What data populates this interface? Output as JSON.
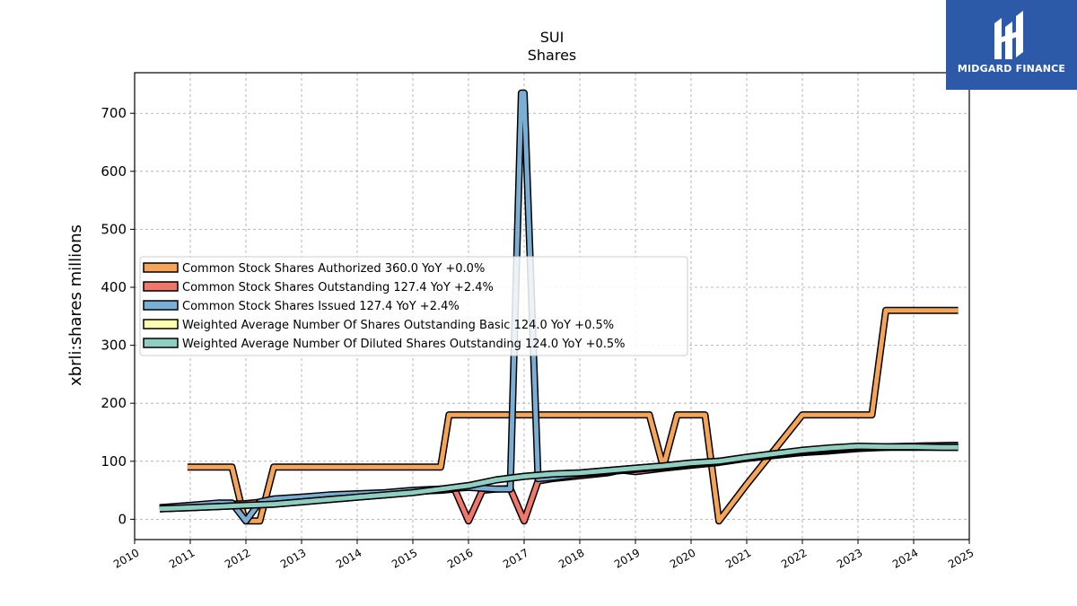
{
  "brand": {
    "name": "MIDGARD FINANCE",
    "bg_color": "#2d5aa8"
  },
  "chart_data": {
    "type": "line",
    "title": "SUI",
    "subtitle": "Shares",
    "ylabel": "xbrli:shares millions",
    "xlabel": "",
    "xlim": [
      2010.0,
      2025.0
    ],
    "ylim": [
      -35,
      770
    ],
    "x_ticks": [
      "2010",
      "2011",
      "2012",
      "2013",
      "2014",
      "2015",
      "2016",
      "2017",
      "2018",
      "2019",
      "2020",
      "2021",
      "2022",
      "2023",
      "2024",
      "2025"
    ],
    "y_ticks": [
      0,
      100,
      200,
      300,
      400,
      500,
      600,
      700
    ],
    "grid": true,
    "legend_position": "center-left",
    "series": [
      {
        "name": "Common Stock Shares Authorized",
        "legend": "Common Stock Shares Authorized  360.0 YoY +0.0%",
        "color": "#f5a55a",
        "x": [
          2010.95,
          2011.2,
          2011.45,
          2011.75,
          2011.95,
          2012.0,
          2012.25,
          2012.5,
          2013.0,
          2014.0,
          2015.0,
          2015.5,
          2015.65,
          2016.0,
          2017.0,
          2018.0,
          2019.0,
          2019.25,
          2019.5,
          2019.75,
          2020.0,
          2020.25,
          2020.5,
          2021.0,
          2021.5,
          2022.0,
          2022.5,
          2023.0,
          2023.25,
          2023.5,
          2024.0,
          2024.5,
          2024.8
        ],
        "y": [
          90,
          90,
          90,
          90,
          10,
          -3,
          -3,
          90,
          90,
          90,
          90,
          90,
          180,
          180,
          180,
          180,
          180,
          180,
          90,
          180,
          180,
          180,
          -3,
          60,
          120,
          180,
          180,
          180,
          180,
          360,
          360,
          360,
          360
        ]
      },
      {
        "name": "Common Stock Shares Outstanding",
        "legend": "Common Stock Shares Outstanding  127.4 YoY +2.4%",
        "color": "#f0776a",
        "x": [
          2010.45,
          2011.0,
          2011.5,
          2012.0,
          2012.5,
          2013.0,
          2013.5,
          2014.0,
          2014.5,
          2015.0,
          2015.5,
          2015.75,
          2016.0,
          2016.25,
          2016.5,
          2016.75,
          2017.0,
          2017.25,
          2017.5,
          2018.0,
          2018.5,
          2018.75,
          2019.0,
          2019.5,
          2020.0,
          2020.5,
          2021.0,
          2021.5,
          2022.0,
          2022.5,
          2023.0,
          2023.5,
          2024.0,
          2024.5,
          2024.8
        ],
        "y": [
          20,
          22,
          25,
          27,
          32,
          36,
          40,
          42,
          45,
          48,
          50,
          52,
          -3,
          50,
          52,
          53,
          -3,
          66,
          70,
          75,
          80,
          85,
          82,
          88,
          93,
          98,
          105,
          110,
          115,
          118,
          122,
          124,
          126,
          127,
          127.4
        ]
      },
      {
        "name": "Common Stock Shares Issued",
        "legend": "Common Stock Shares Issued  127.4 YoY +2.4%",
        "color": "#7aaed4",
        "x": [
          2010.45,
          2011.0,
          2011.5,
          2011.75,
          2012.0,
          2012.25,
          2012.5,
          2013.0,
          2013.5,
          2014.0,
          2014.5,
          2015.0,
          2015.5,
          2016.0,
          2016.5,
          2016.75,
          2016.95,
          2017.0,
          2017.25,
          2017.5,
          2018.0,
          2018.5,
          2019.0,
          2019.5,
          2020.0,
          2020.5,
          2021.0,
          2021.5,
          2022.0,
          2022.5,
          2023.0,
          2023.5,
          2024.0,
          2024.5,
          2024.8
        ],
        "y": [
          20,
          24,
          28,
          28,
          -3,
          30,
          35,
          38,
          42,
          44,
          46,
          50,
          52,
          55,
          52,
          52,
          735,
          735,
          70,
          72,
          78,
          82,
          86,
          90,
          95,
          100,
          106,
          112,
          117,
          120,
          123,
          125,
          126,
          127,
          127.4
        ]
      },
      {
        "name": "Weighted Average Number Of Shares Outstanding Basic",
        "legend": "Weighted Average Number Of Shares Outstanding Basic  124.0 YoY +0.5%",
        "color": "#ffffb0",
        "x": [
          2010.45,
          2011.0,
          2011.5,
          2012.0,
          2012.5,
          2013.0,
          2013.5,
          2014.0,
          2014.5,
          2015.0,
          2015.5,
          2016.0,
          2016.5,
          2017.0,
          2017.5,
          2018.0,
          2018.5,
          2019.0,
          2019.5,
          2020.0,
          2020.5,
          2021.0,
          2021.5,
          2022.0,
          2022.5,
          2023.0,
          2023.5,
          2024.0,
          2024.5,
          2024.8
        ],
        "y": [
          18,
          20,
          22,
          24,
          26,
          30,
          34,
          38,
          42,
          46,
          52,
          58,
          68,
          74,
          78,
          80,
          84,
          88,
          92,
          97,
          100,
          107,
          113,
          118,
          122,
          125,
          124,
          124,
          124,
          124
        ]
      },
      {
        "name": "Weighted Average Number Of Diluted Shares Outstanding",
        "legend": "Weighted Average Number Of Diluted Shares Outstanding  124.0 YoY +0.5%",
        "color": "#8ecfc2",
        "x": [
          2010.45,
          2011.0,
          2011.5,
          2012.0,
          2012.5,
          2013.0,
          2013.5,
          2014.0,
          2014.5,
          2015.0,
          2015.5,
          2016.0,
          2016.5,
          2017.0,
          2017.5,
          2018.0,
          2018.5,
          2019.0,
          2019.5,
          2020.0,
          2020.5,
          2021.0,
          2021.5,
          2022.0,
          2022.5,
          2023.0,
          2023.5,
          2024.0,
          2024.5,
          2024.8
        ],
        "y": [
          18,
          20,
          22,
          24,
          26,
          30,
          34,
          38,
          42,
          46,
          52,
          58,
          68,
          74,
          78,
          80,
          84,
          88,
          92,
          97,
          100,
          107,
          113,
          119,
          123,
          126,
          125,
          125,
          124,
          124
        ]
      }
    ]
  }
}
